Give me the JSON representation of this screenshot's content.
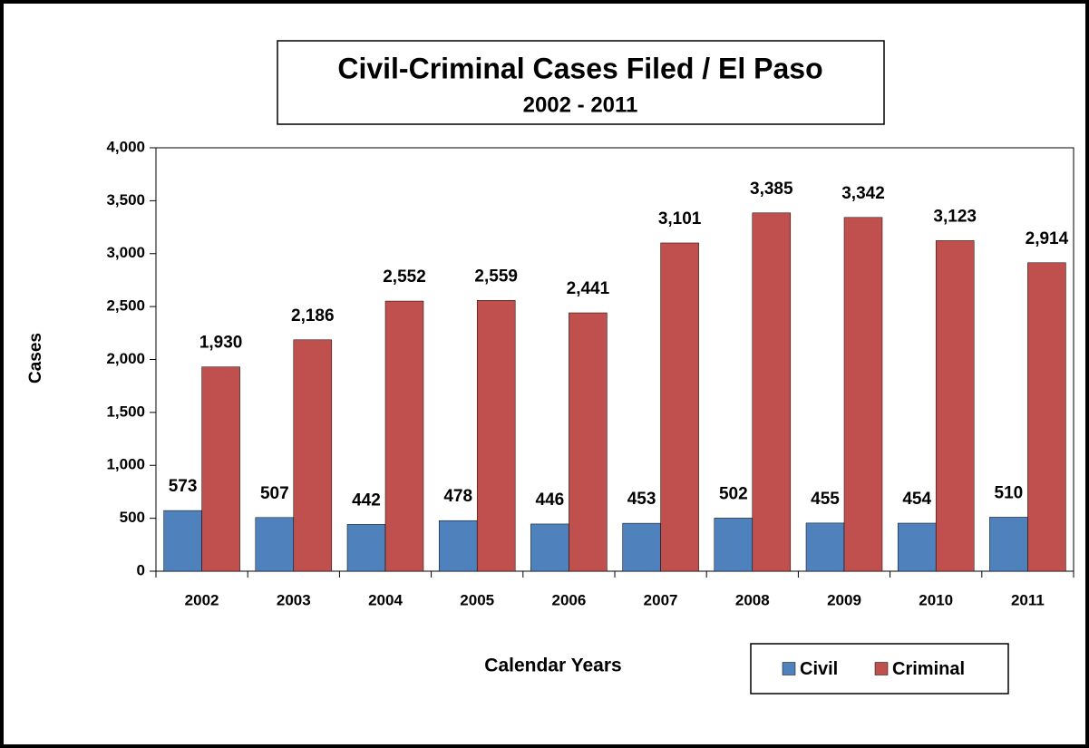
{
  "chart_data": {
    "type": "bar",
    "title": "Civil-Criminal Cases Filed / El Paso",
    "subtitle": "2002 - 2011",
    "y_label": "Cases",
    "x_label": "Calendar Years",
    "categories": [
      "2002",
      "2003",
      "2004",
      "2005",
      "2006",
      "2007",
      "2008",
      "2009",
      "2010",
      "2011"
    ],
    "series": [
      {
        "name": "Civil",
        "color": "#4f81bd",
        "values": [
          573,
          507,
          442,
          478,
          446,
          453,
          502,
          455,
          454,
          510
        ]
      },
      {
        "name": "Criminal",
        "color": "#c0504d",
        "values": [
          1930,
          2186,
          2552,
          2559,
          2441,
          3101,
          3385,
          3342,
          3123,
          2914
        ],
        "value_labels": [
          "1,930",
          "2,186",
          "2,552",
          "2,559",
          "2,441",
          "3,101",
          "3,385",
          "3,342",
          "3,123",
          "2,914"
        ]
      }
    ],
    "ylim": [
      0,
      4000
    ],
    "yticks": [
      0,
      500,
      {
        "value": 1000,
        "label": "1,000"
      },
      {
        "value": 1500,
        "label": "1,500"
      },
      {
        "value": 2000,
        "label": "2,000"
      },
      {
        "value": 2500,
        "label": "2,500"
      },
      {
        "value": 3000,
        "label": "3,000"
      },
      {
        "value": 3500,
        "label": "3,500"
      },
      {
        "value": 4000,
        "label": "4,000"
      }
    ],
    "legend": "bottom-right"
  }
}
